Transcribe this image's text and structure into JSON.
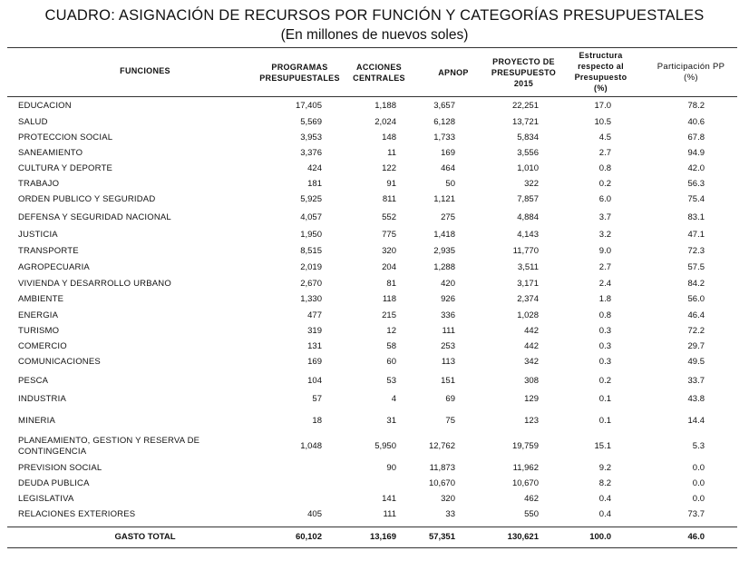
{
  "title": "CUADRO: ASIGNACIÓN DE RECURSOS POR FUNCIÓN Y CATEGORÍAS PRESUPUESTALES",
  "subtitle": "(En millones de nuevos soles)",
  "headers": {
    "funciones": "FUNCIONES",
    "pp": [
      "PROGRAMAS",
      "PRESUPUESTALES"
    ],
    "ac": [
      "ACCIONES",
      "CENTRALES"
    ],
    "apnop": [
      "APNOP"
    ],
    "proy": [
      "PROYECTO DE",
      "PRESUPUESTO",
      "2015"
    ],
    "estr": [
      "Estructura",
      "respecto al",
      "Presupuesto",
      "(%)"
    ],
    "part": [
      "Participación PP",
      "(%)"
    ]
  },
  "rows": [
    {
      "name": "EDUCACION",
      "pp": "17,405",
      "ac": "1,188",
      "apnop": "3,657",
      "proy": "22,251",
      "estr": "17.0",
      "part": "78.2"
    },
    {
      "name": "SALUD",
      "pp": "5,569",
      "ac": "2,024",
      "apnop": "6,128",
      "proy": "13,721",
      "estr": "10.5",
      "part": "40.6"
    },
    {
      "name": "PROTECCION SOCIAL",
      "pp": "3,953",
      "ac": "148",
      "apnop": "1,733",
      "proy": "5,834",
      "estr": "4.5",
      "part": "67.8"
    },
    {
      "name": "SANEAMIENTO",
      "pp": "3,376",
      "ac": "11",
      "apnop": "169",
      "proy": "3,556",
      "estr": "2.7",
      "part": "94.9"
    },
    {
      "name": "CULTURA Y DEPORTE",
      "pp": "424",
      "ac": "122",
      "apnop": "464",
      "proy": "1,010",
      "estr": "0.8",
      "part": "42.0"
    },
    {
      "name": "TRABAJO",
      "pp": "181",
      "ac": "91",
      "apnop": "50",
      "proy": "322",
      "estr": "0.2",
      "part": "56.3"
    },
    {
      "name": "ORDEN PUBLICO Y SEGURIDAD",
      "pp": "5,925",
      "ac": "811",
      "apnop": "1,121",
      "proy": "7,857",
      "estr": "6.0",
      "part": "75.4"
    },
    {
      "name": "DEFENSA Y SEGURIDAD NACIONAL",
      "pp": "4,057",
      "ac": "552",
      "apnop": "275",
      "proy": "4,884",
      "estr": "3.7",
      "part": "83.1"
    },
    {
      "name": "JUSTICIA",
      "pp": "1,950",
      "ac": "775",
      "apnop": "1,418",
      "proy": "4,143",
      "estr": "3.2",
      "part": "47.1"
    },
    {
      "name": "TRANSPORTE",
      "pp": "8,515",
      "ac": "320",
      "apnop": "2,935",
      "proy": "11,770",
      "estr": "9.0",
      "part": "72.3"
    },
    {
      "name": "AGROPECUARIA",
      "pp": "2,019",
      "ac": "204",
      "apnop": "1,288",
      "proy": "3,511",
      "estr": "2.7",
      "part": "57.5"
    },
    {
      "name": "VIVIENDA Y DESARROLLO URBANO",
      "pp": "2,670",
      "ac": "81",
      "apnop": "420",
      "proy": "3,171",
      "estr": "2.4",
      "part": "84.2"
    },
    {
      "name": "AMBIENTE",
      "pp": "1,330",
      "ac": "118",
      "apnop": "926",
      "proy": "2,374",
      "estr": "1.8",
      "part": "56.0"
    },
    {
      "name": "ENERGIA",
      "pp": "477",
      "ac": "215",
      "apnop": "336",
      "proy": "1,028",
      "estr": "0.8",
      "part": "46.4"
    },
    {
      "name": "TURISMO",
      "pp": "319",
      "ac": "12",
      "apnop": "111",
      "proy": "442",
      "estr": "0.3",
      "part": "72.2"
    },
    {
      "name": "COMERCIO",
      "pp": "131",
      "ac": "58",
      "apnop": "253",
      "proy": "442",
      "estr": "0.3",
      "part": "29.7"
    },
    {
      "name": "COMUNICACIONES",
      "pp": "169",
      "ac": "60",
      "apnop": "113",
      "proy": "342",
      "estr": "0.3",
      "part": "49.5"
    },
    {
      "name": "PESCA",
      "pp": "104",
      "ac": "53",
      "apnop": "151",
      "proy": "308",
      "estr": "0.2",
      "part": "33.7"
    },
    {
      "name": "INDUSTRIA",
      "pp": "57",
      "ac": "4",
      "apnop": "69",
      "proy": "129",
      "estr": "0.1",
      "part": "43.8"
    },
    {
      "name": "MINERIA",
      "pp": "18",
      "ac": "31",
      "apnop": "75",
      "proy": "123",
      "estr": "0.1",
      "part": "14.4"
    },
    {
      "name": "PLANEAMIENTO, GESTION Y RESERVA DE\nCONTINGENCIA",
      "pp": "1,048",
      "ac": "5,950",
      "apnop": "12,762",
      "proy": "19,759",
      "estr": "15.1",
      "part": "5.3"
    },
    {
      "name": "PREVISION SOCIAL",
      "pp": "",
      "ac": "90",
      "apnop": "11,873",
      "proy": "11,962",
      "estr": "9.2",
      "part": "0.0"
    },
    {
      "name": "DEUDA PUBLICA",
      "pp": "",
      "ac": "",
      "apnop": "10,670",
      "proy": "10,670",
      "estr": "8.2",
      "part": "0.0"
    },
    {
      "name": "LEGISLATIVA",
      "pp": "",
      "ac": "141",
      "apnop": "320",
      "proy": "462",
      "estr": "0.4",
      "part": "0.0"
    },
    {
      "name": "RELACIONES EXTERIORES",
      "pp": "405",
      "ac": "111",
      "apnop": "33",
      "proy": "550",
      "estr": "0.4",
      "part": "73.7"
    }
  ],
  "total": {
    "name": "GASTO TOTAL",
    "pp": "60,102",
    "ac": "13,169",
    "apnop": "57,351",
    "proy": "130,621",
    "estr": "100.0",
    "part": "46.0"
  }
}
